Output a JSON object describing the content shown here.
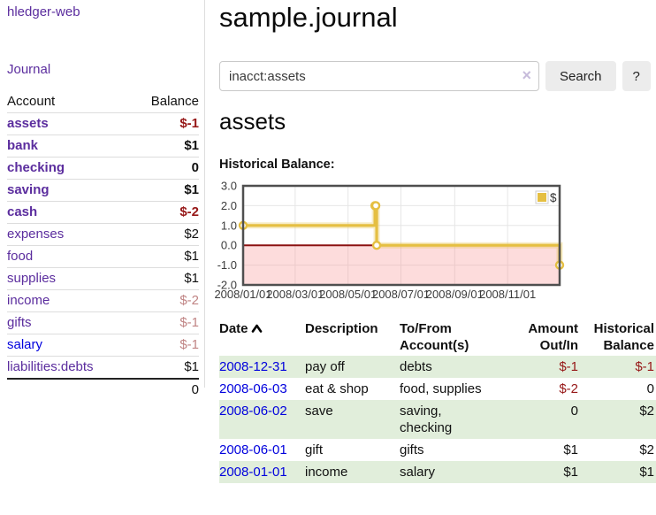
{
  "colors": {
    "accent_purple": "#5b2d9e",
    "link_blue": "#0000dd",
    "negative_strong": "#961717",
    "negative_faded": "#c08484",
    "row_green": "#e1eedb",
    "chart_gold": "#e5bf42",
    "negative_region_pink": "#fbdada",
    "zero_line_red": "#8b1111"
  },
  "sidebar": {
    "brand": "hledger-web",
    "journal_label": "Journal",
    "accounts_table": {
      "headers": {
        "account": "Account",
        "balance": "Balance"
      },
      "rows": [
        {
          "account": "assets",
          "depth": 1,
          "bold": true,
          "link": "purple",
          "balance": "$-1",
          "balance_style": "neg-strong"
        },
        {
          "account": "bank",
          "depth": 2,
          "bold": true,
          "link": "purple",
          "balance": "$1",
          "balance_style": "pos"
        },
        {
          "account": "checking",
          "depth": 3,
          "bold": true,
          "link": "purple",
          "balance": "0",
          "balance_style": "pos"
        },
        {
          "account": "saving",
          "depth": 3,
          "bold": true,
          "link": "purple",
          "balance": "$1",
          "balance_style": "pos"
        },
        {
          "account": "cash",
          "depth": 2,
          "bold": true,
          "link": "purple",
          "balance": "$-2",
          "balance_style": "neg-strong"
        },
        {
          "account": "expenses",
          "depth": 1,
          "bold": false,
          "link": "purple",
          "balance": "$2",
          "balance_style": "pos"
        },
        {
          "account": "food",
          "depth": 2,
          "bold": false,
          "link": "purple",
          "balance": "$1",
          "balance_style": "pos"
        },
        {
          "account": "supplies",
          "depth": 2,
          "bold": false,
          "link": "purple",
          "balance": "$1",
          "balance_style": "pos"
        },
        {
          "account": "income",
          "depth": 1,
          "bold": false,
          "link": "purple",
          "balance": "$-2",
          "balance_style": "neg-faded"
        },
        {
          "account": "gifts",
          "depth": 2,
          "bold": false,
          "link": "purple",
          "balance": "$-1",
          "balance_style": "neg-faded"
        },
        {
          "account": "salary",
          "depth": 2,
          "bold": false,
          "link": "blue",
          "balance": "$-1",
          "balance_style": "neg-faded"
        },
        {
          "account": "liabilities:debts",
          "depth": 1,
          "bold": false,
          "link": "purple",
          "balance": "$1",
          "balance_style": "pos"
        }
      ],
      "total": "0"
    }
  },
  "header": {
    "title": "sample.journal"
  },
  "search": {
    "value": "inacct:assets",
    "clear_icon": "×",
    "button_label": "Search",
    "help_label": "?"
  },
  "account_page": {
    "heading": "assets"
  },
  "chart_data": {
    "type": "line",
    "title": "Historical Balance:",
    "legend": {
      "position": "top-right",
      "entries": [
        {
          "label": "$",
          "color": "#e5bf42"
        }
      ]
    },
    "ylim": [
      -2,
      3
    ],
    "x_start": "2008/01/01",
    "x_end": "2008/12/31",
    "y_ticks": [
      {
        "v": 3,
        "label": "3.0"
      },
      {
        "v": 2,
        "label": "2.0"
      },
      {
        "v": 1,
        "label": "1.0"
      },
      {
        "v": 0,
        "label": "0.0"
      },
      {
        "v": -1,
        "label": "-1.0"
      },
      {
        "v": -2,
        "label": "-2.0"
      }
    ],
    "x_ticks": [
      {
        "date": "2008/01/01",
        "label": "2008/01/01"
      },
      {
        "date": "2008/03/01",
        "label": "2008/03/01"
      },
      {
        "date": "2008/05/01",
        "label": "2008/05/01"
      },
      {
        "date": "2008/07/01",
        "label": "2008/07/01"
      },
      {
        "date": "2008/09/01",
        "label": "2008/09/01"
      },
      {
        "date": "2008/11/01",
        "label": "2008/11/01"
      }
    ],
    "series": [
      {
        "name": "$",
        "color": "#e5bf42",
        "style": "step",
        "points": [
          {
            "date": "2008/01/01",
            "value": 1
          },
          {
            "date": "2008/06/01",
            "value": 2
          },
          {
            "date": "2008/06/02",
            "value": 2
          },
          {
            "date": "2008/06/03",
            "value": 0
          },
          {
            "date": "2008/12/31",
            "value": -1
          }
        ]
      }
    ],
    "negative_region": true,
    "grid": true
  },
  "transactions": {
    "headers": [
      "Date",
      "Description",
      "To/From Account(s)",
      "Amount Out/In",
      "Historical Balance"
    ],
    "rows": [
      {
        "date": "2008-12-31",
        "description": "pay off",
        "accounts": "debts",
        "amount": "$-1",
        "amount_neg": true,
        "balance": "$-1",
        "balance_neg": true
      },
      {
        "date": "2008-06-03",
        "description": "eat & shop",
        "accounts": "food, supplies",
        "amount": "$-2",
        "amount_neg": true,
        "balance": "0",
        "balance_neg": false
      },
      {
        "date": "2008-06-02",
        "description": "save",
        "accounts": "saving,\nchecking",
        "amount": "0",
        "amount_neg": false,
        "balance": "$2",
        "balance_neg": false
      },
      {
        "date": "2008-06-01",
        "description": "gift",
        "accounts": "gifts",
        "amount": "$1",
        "amount_neg": false,
        "balance": "$2",
        "balance_neg": false
      },
      {
        "date": "2008-01-01",
        "description": "income",
        "accounts": "salary",
        "amount": "$1",
        "amount_neg": false,
        "balance": "$1",
        "balance_neg": false
      }
    ]
  }
}
